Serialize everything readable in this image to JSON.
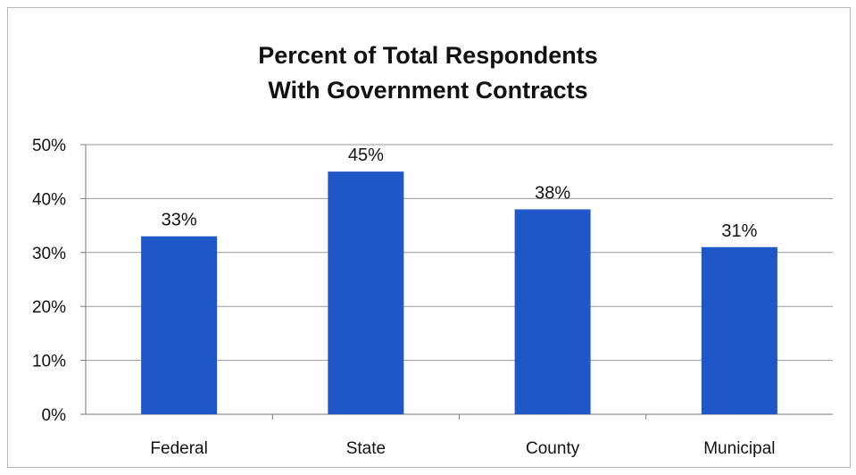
{
  "chart_data": {
    "type": "bar",
    "title_lines": [
      "Percent of Total Respondents",
      "With Government Contracts"
    ],
    "categories": [
      "Federal",
      "State",
      "County",
      "Municipal"
    ],
    "values": [
      33,
      45,
      38,
      31
    ],
    "value_labels": [
      "33%",
      "45%",
      "38%",
      "31%"
    ],
    "y_ticks": [
      {
        "value": 0,
        "label": "0%"
      },
      {
        "value": 10,
        "label": "10%"
      },
      {
        "value": 20,
        "label": "20%"
      },
      {
        "value": 30,
        "label": "30%"
      },
      {
        "value": 40,
        "label": "40%"
      },
      {
        "value": 50,
        "label": "50%"
      }
    ],
    "ylim": [
      0,
      50
    ],
    "xlabel": "",
    "ylabel": "",
    "grid": true,
    "legend": "none",
    "bar_color": "#1f56c8",
    "grid_color": "#9a9a9a"
  }
}
